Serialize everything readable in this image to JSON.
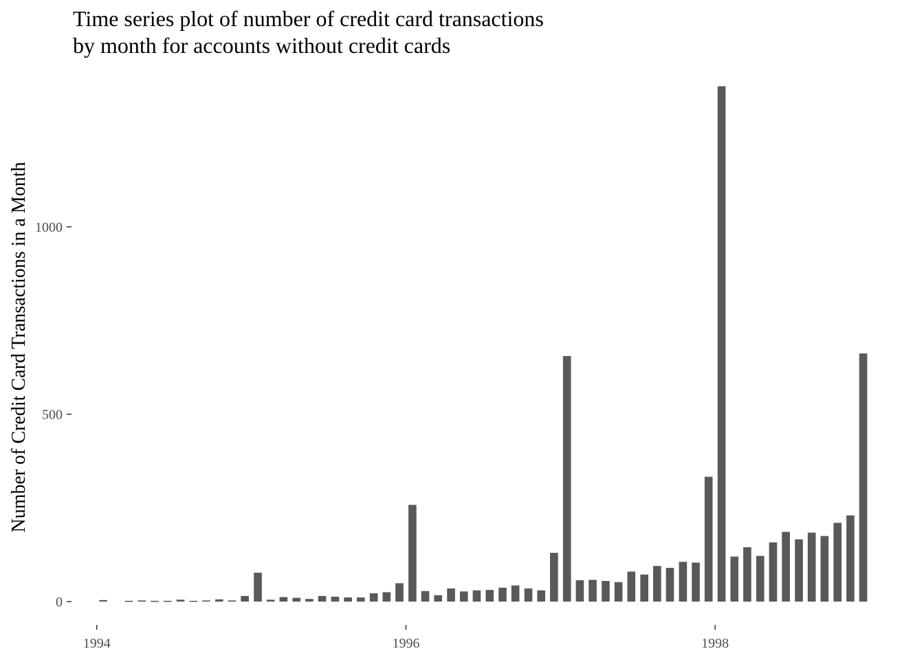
{
  "chart_data": {
    "type": "bar",
    "title_lines": [
      "Time series plot of number of credit card transactions",
      "by month for accounts without credit cards"
    ],
    "xlabel": "",
    "ylabel": "Number of Credit Card Transactions in a Month",
    "xlim": [
      1993.85,
      1999.08
    ],
    "ylim": [
      -55,
      1385
    ],
    "grid": false,
    "x_ticks": [
      {
        "value": 1994,
        "label": "1994"
      },
      {
        "value": 1996,
        "label": "1996"
      },
      {
        "value": 1998,
        "label": "1998"
      }
    ],
    "y_ticks": [
      {
        "value": 0,
        "label": "0"
      },
      {
        "value": 500,
        "label": "500"
      },
      {
        "value": 1000,
        "label": "1000"
      }
    ],
    "bar_color": "#595959",
    "x": [
      1994.042,
      1994.208,
      1994.292,
      1994.375,
      1994.458,
      1994.542,
      1994.625,
      1994.708,
      1994.792,
      1994.875,
      1994.958,
      1995.042,
      1995.125,
      1995.208,
      1995.292,
      1995.375,
      1995.458,
      1995.542,
      1995.625,
      1995.708,
      1995.792,
      1995.875,
      1995.958,
      1996.042,
      1996.125,
      1996.208,
      1996.292,
      1996.375,
      1996.458,
      1996.542,
      1996.625,
      1996.708,
      1996.792,
      1996.875,
      1996.958,
      1997.042,
      1997.125,
      1997.208,
      1997.292,
      1997.375,
      1997.458,
      1997.542,
      1997.625,
      1997.708,
      1997.792,
      1997.875,
      1997.958,
      1998.042,
      1998.125,
      1998.208,
      1998.292,
      1998.375,
      1998.458,
      1998.542,
      1998.625,
      1998.708,
      1998.792,
      1998.875,
      1998.958
    ],
    "values": [
      4,
      2,
      3,
      2,
      2,
      5,
      2,
      3,
      6,
      3,
      15,
      77,
      5,
      12,
      10,
      7,
      15,
      13,
      11,
      11,
      22,
      25,
      49,
      258,
      28,
      17,
      35,
      27,
      30,
      31,
      37,
      43,
      35,
      30,
      130,
      655,
      57,
      58,
      55,
      52,
      80,
      72,
      95,
      90,
      106,
      104,
      333,
      1375,
      120,
      145,
      122,
      158,
      186,
      166,
      184,
      175,
      210,
      230,
      662
    ]
  }
}
